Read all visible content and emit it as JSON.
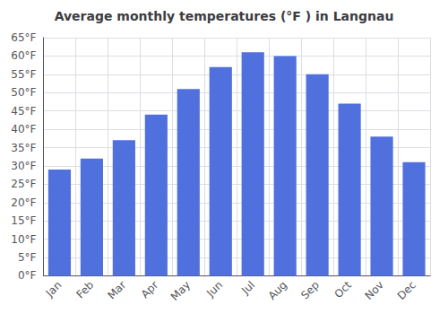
{
  "chart_data": {
    "type": "bar",
    "title": "Average monthly temperatures (°F ) in Langnau",
    "categories": [
      "Jan",
      "Feb",
      "Mar",
      "Apr",
      "May",
      "Jun",
      "Jul",
      "Aug",
      "Sep",
      "Oct",
      "Nov",
      "Dec"
    ],
    "values": [
      29,
      32,
      37,
      44,
      51,
      57,
      61,
      60,
      55,
      47,
      38,
      31
    ],
    "ylim": [
      0,
      65
    ],
    "yticks": [
      {
        "value": 0,
        "label": "0°F"
      },
      {
        "value": 5,
        "label": "5°F"
      },
      {
        "value": 10,
        "label": "10°F"
      },
      {
        "value": 15,
        "label": "15°F"
      },
      {
        "value": 20,
        "label": "20°F"
      },
      {
        "value": 25,
        "label": "25°F"
      },
      {
        "value": 30,
        "label": "30°F"
      },
      {
        "value": 35,
        "label": "35°F"
      },
      {
        "value": 40,
        "label": "40°F"
      },
      {
        "value": 45,
        "label": "45°F"
      },
      {
        "value": 50,
        "label": "50°F"
      },
      {
        "value": 55,
        "label": "55°F"
      },
      {
        "value": 60,
        "label": "60°F"
      },
      {
        "value": 65,
        "label": "65°F"
      }
    ],
    "grid": true
  }
}
